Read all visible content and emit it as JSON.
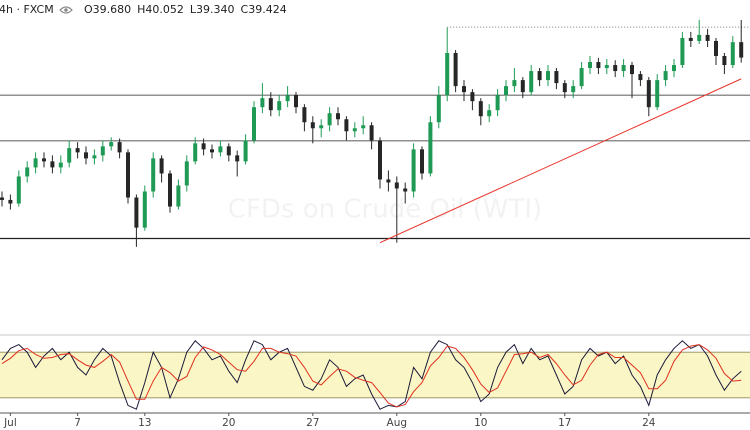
{
  "chart_data": [
    {
      "type": "candlestick",
      "header": "4h · FXCM",
      "watermark": "CFDs on Crude Oil (WTI)",
      "ohlc_legend": [
        {
          "value": 39.68,
          "label": "O39.680"
        },
        {
          "value": 40.052,
          "label": "H40.052"
        },
        {
          "value": 39.34,
          "label": "L39.340"
        },
        {
          "value": 39.424,
          "label": "C39.424"
        }
      ],
      "categories": [
        null,
        "Jul",
        null,
        null,
        null,
        null,
        null,
        null,
        null,
        "7",
        null,
        null,
        null,
        null,
        null,
        null,
        null,
        "13",
        null,
        null,
        null,
        null,
        null,
        null,
        null,
        null,
        null,
        "20",
        null,
        null,
        null,
        null,
        null,
        null,
        null,
        null,
        null,
        "27",
        null,
        null,
        null,
        null,
        null,
        null,
        null,
        null,
        null,
        "Aug",
        null,
        null,
        null,
        null,
        null,
        null,
        null,
        null,
        null,
        "10",
        null,
        null,
        null,
        null,
        null,
        null,
        null,
        null,
        null,
        "17",
        null,
        null,
        null,
        null,
        null,
        null,
        null,
        null,
        null,
        "24",
        null,
        null,
        null,
        null,
        null,
        null,
        null,
        null,
        null,
        null,
        null
      ],
      "open": [
        37.1,
        37.06,
        37.0,
        37.45,
        37.6,
        37.75,
        37.7,
        37.6,
        37.68,
        37.92,
        37.85,
        37.75,
        37.8,
        37.95,
        38.02,
        37.85,
        37.1,
        36.6,
        37.2,
        37.75,
        37.5,
        36.95,
        37.3,
        37.7,
        38.0,
        37.9,
        37.85,
        37.95,
        37.8,
        37.7,
        38.05,
        38.6,
        38.75,
        38.55,
        38.7,
        38.8,
        38.6,
        38.35,
        38.25,
        38.3,
        38.5,
        38.4,
        38.2,
        38.25,
        38.3,
        38.05,
        37.4,
        37.35,
        37.25,
        37.2,
        37.9,
        37.5,
        38.35,
        38.8,
        39.5,
        38.95,
        38.85,
        38.7,
        38.45,
        38.55,
        38.8,
        38.95,
        39.05,
        38.85,
        39.2,
        39.05,
        39.2,
        39.0,
        38.85,
        38.95,
        39.25,
        39.35,
        39.25,
        39.3,
        39.2,
        39.3,
        39.15,
        39.05,
        38.6,
        39.05,
        39.2,
        39.3,
        39.75,
        39.7,
        39.8,
        39.7,
        39.45,
        39.3,
        39.68
      ],
      "high": [
        37.2,
        37.15,
        37.55,
        37.7,
        37.85,
        37.85,
        37.8,
        37.8,
        38.05,
        38.02,
        37.95,
        37.9,
        38.05,
        38.1,
        38.08,
        37.9,
        37.15,
        37.3,
        37.85,
        37.8,
        37.55,
        37.4,
        37.8,
        38.1,
        38.08,
        37.98,
        38.05,
        38.0,
        37.88,
        38.15,
        38.7,
        39.0,
        38.85,
        38.8,
        38.95,
        38.85,
        38.65,
        38.45,
        38.4,
        38.6,
        38.6,
        38.45,
        38.35,
        38.45,
        38.35,
        38.1,
        37.55,
        37.45,
        37.35,
        38.0,
        37.95,
        38.45,
        38.95,
        39.92,
        39.55,
        39.05,
        38.9,
        38.75,
        38.65,
        38.9,
        39.05,
        39.25,
        39.1,
        39.3,
        39.25,
        39.3,
        39.25,
        39.05,
        39.05,
        39.35,
        39.45,
        39.42,
        39.4,
        39.38,
        39.4,
        39.35,
        39.2,
        39.1,
        39.15,
        39.3,
        39.4,
        39.85,
        39.85,
        40.1,
        39.9,
        39.75,
        39.5,
        39.78,
        40.052
      ],
      "low": [
        36.95,
        36.9,
        36.95,
        37.35,
        37.5,
        37.6,
        37.5,
        37.5,
        37.6,
        37.75,
        37.65,
        37.65,
        37.7,
        37.88,
        37.75,
        37.0,
        36.28,
        36.55,
        37.1,
        37.35,
        36.85,
        36.9,
        37.2,
        37.65,
        37.8,
        37.75,
        37.78,
        37.7,
        37.45,
        37.65,
        38.0,
        38.5,
        38.45,
        38.45,
        38.6,
        38.5,
        38.2,
        38.0,
        38.1,
        38.2,
        38.3,
        38.05,
        38.1,
        38.15,
        37.9,
        37.25,
        37.2,
        36.35,
        37.0,
        37.1,
        37.4,
        37.45,
        38.25,
        38.7,
        38.85,
        38.7,
        38.55,
        38.3,
        38.35,
        38.45,
        38.7,
        38.85,
        38.75,
        38.8,
        38.95,
        38.95,
        38.9,
        38.75,
        38.75,
        38.9,
        39.15,
        39.15,
        39.15,
        39.1,
        39.1,
        38.75,
        38.95,
        38.45,
        38.55,
        38.95,
        39.1,
        39.25,
        39.6,
        39.65,
        39.6,
        39.3,
        39.15,
        39.25,
        39.34
      ],
      "close": [
        37.06,
        37.0,
        37.45,
        37.6,
        37.75,
        37.7,
        37.6,
        37.68,
        37.92,
        37.85,
        37.75,
        37.8,
        37.95,
        38.02,
        37.85,
        37.1,
        36.6,
        37.2,
        37.75,
        37.5,
        36.95,
        37.3,
        37.7,
        38.0,
        37.9,
        37.85,
        37.95,
        37.8,
        37.7,
        38.05,
        38.6,
        38.75,
        38.55,
        38.7,
        38.8,
        38.6,
        38.35,
        38.25,
        38.3,
        38.5,
        38.4,
        38.2,
        38.25,
        38.3,
        38.05,
        37.4,
        37.35,
        37.25,
        37.2,
        37.9,
        37.5,
        38.35,
        38.8,
        39.5,
        38.95,
        38.85,
        38.7,
        38.45,
        38.55,
        38.8,
        38.95,
        39.05,
        38.85,
        39.2,
        39.05,
        39.2,
        39.0,
        38.85,
        38.95,
        39.25,
        39.35,
        39.25,
        39.3,
        39.2,
        39.3,
        39.15,
        39.05,
        38.6,
        39.05,
        39.2,
        39.3,
        39.75,
        39.7,
        39.8,
        39.7,
        39.45,
        39.3,
        39.68,
        39.424
      ],
      "up_color": "#1f9a55",
      "down_color": "#262626",
      "ylim": [
        34.9,
        40.38
      ],
      "hlines": [
        38.8,
        38.04,
        36.42
      ],
      "dotted_line": {
        "x": [
          53,
          88
        ],
        "y": 39.93
      },
      "trendline": {
        "x": [
          45,
          88
        ],
        "y": [
          36.35,
          39.07
        ],
        "color": "#e8342a"
      }
    },
    {
      "type": "line",
      "ylim": [
        0,
        100
      ],
      "band": [
        20,
        80
      ],
      "band_color": "#fbf6c6",
      "series": [
        {
          "color": "#1b1b3a",
          "values": [
            70,
            85,
            90,
            80,
            60,
            75,
            85,
            70,
            80,
            60,
            50,
            70,
            85,
            75,
            40,
            10,
            5,
            40,
            80,
            60,
            20,
            45,
            80,
            95,
            85,
            70,
            75,
            55,
            40,
            70,
            95,
            90,
            70,
            80,
            85,
            60,
            35,
            30,
            45,
            70,
            60,
            35,
            45,
            50,
            25,
            5,
            10,
            8,
            15,
            60,
            45,
            80,
            95,
            90,
            70,
            60,
            40,
            15,
            25,
            60,
            80,
            90,
            65,
            85,
            70,
            75,
            50,
            25,
            35,
            70,
            85,
            75,
            80,
            65,
            75,
            50,
            35,
            10,
            50,
            70,
            85,
            95,
            85,
            90,
            75,
            50,
            30,
            45,
            55
          ]
        },
        {
          "color": "#e0301e",
          "values": [
            65,
            72,
            82,
            85,
            77,
            72,
            73,
            77,
            78,
            70,
            63,
            60,
            68,
            77,
            67,
            42,
            18,
            18,
            42,
            60,
            53,
            42,
            48,
            73,
            87,
            83,
            77,
            67,
            57,
            55,
            68,
            85,
            85,
            80,
            78,
            75,
            60,
            42,
            37,
            48,
            58,
            55,
            47,
            43,
            40,
            27,
            13,
            8,
            11,
            28,
            40,
            62,
            73,
            88,
            85,
            73,
            57,
            38,
            27,
            33,
            55,
            77,
            78,
            80,
            73,
            77,
            65,
            50,
            37,
            43,
            63,
            77,
            80,
            73,
            73,
            63,
            53,
            32,
            32,
            43,
            68,
            83,
            88,
            90,
            83,
            72,
            52,
            42,
            43
          ]
        }
      ]
    }
  ]
}
